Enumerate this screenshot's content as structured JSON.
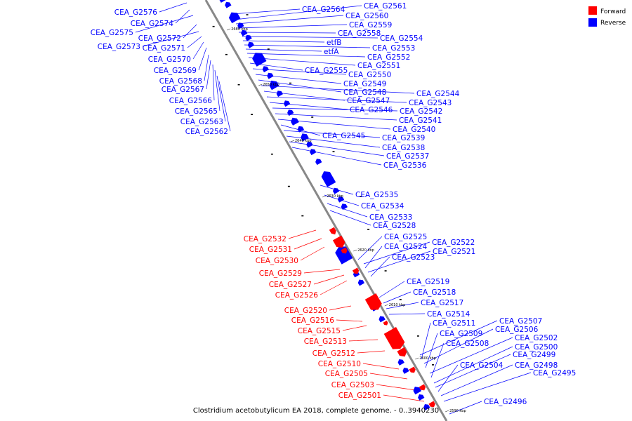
{
  "legend": {
    "forward": {
      "label": "Forward",
      "color": "#ff0000"
    },
    "reverse": {
      "label": "Reverse",
      "color": "#0000ff"
    }
  },
  "caption": "Clostridium acetobutylicum EA 2018, complete genome. - 0..3940230",
  "ticks": [
    "2660 kbp",
    "2650 kbp",
    "2640 kbp",
    "2630 kbp",
    "2620 kbp",
    "2610 kbp",
    "2600 kbp",
    "2590 kbp"
  ],
  "left_labels": [
    "CEA_G2576",
    "CEA_G2574",
    "CEA_G2575",
    "CEA_G2572",
    "CEA_G2573",
    "CEA_G2571",
    "CEA_G2570",
    "CEA_G2569",
    "CEA_G2568",
    "CEA_G2567",
    "CEA_G2566",
    "CEA_G2565",
    "CEA_G2563",
    "CEA_G2562"
  ],
  "right_labels": [
    "CEA_G2564",
    "CEA_G2561",
    "CEA_G2560",
    "CEA_G2559",
    "CEA_G2558",
    "CEA_G2554",
    "etfB",
    "CEA_G2553",
    "etfA",
    "CEA_G2552",
    "CEA_G2551",
    "CEA_G2555",
    "CEA_G2550",
    "CEA_G2549",
    "CEA_G2548",
    "CEA_G2544",
    "CEA_G2547",
    "CEA_G2543",
    "CEA_G2546",
    "CEA_G2542",
    "CEA_G2541",
    "CEA_G2540",
    "CEA_G2545",
    "CEA_G2539",
    "CEA_G2538",
    "CEA_G2537",
    "CEA_G2536",
    "CEA_G2535",
    "CEA_G2534",
    "CEA_G2533",
    "CEA_G2528",
    "CEA_G2525",
    "CEA_G2522",
    "CEA_G2524",
    "CEA_G2521",
    "CEA_G2523",
    "CEA_G2519",
    "CEA_G2518",
    "CEA_G2517",
    "CEA_G2514",
    "CEA_G2507",
    "CEA_G2511",
    "CEA_G2506",
    "CEA_G2509",
    "CEA_G2502",
    "CEA_G2508",
    "CEA_G2500",
    "CEA_G2499",
    "CEA_G2504",
    "CEA_G2498",
    "CEA_G2495",
    "CEA_G2496"
  ],
  "forward_labels": [
    "CEA_G2532",
    "CEA_G2531",
    "CEA_G2530",
    "CEA_G2529",
    "CEA_G2527",
    "CEA_G2526",
    "CEA_G2520",
    "CEA_G2516",
    "CEA_G2515",
    "CEA_G2513",
    "CEA_G2512",
    "CEA_G2510",
    "CEA_G2505",
    "CEA_G2503",
    "CEA_G2501"
  ]
}
